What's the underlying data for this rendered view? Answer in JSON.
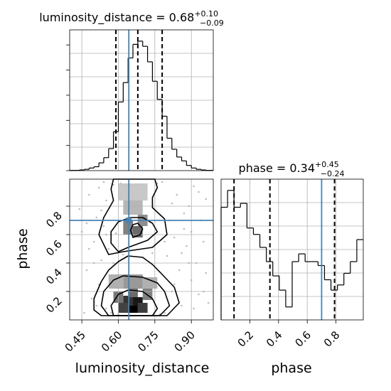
{
  "chart_data": [
    {
      "type": "histogram",
      "panel": "luminosity_distance-marginal",
      "title": {
        "text": "luminosity_distance = 0.68",
        "sup": "+0.10",
        "sub": "−0.09"
      },
      "xlim": [
        0.4,
        0.99
      ],
      "bin_edges": [
        0.4,
        0.42,
        0.44,
        0.46,
        0.48,
        0.5,
        0.52,
        0.54,
        0.56,
        0.58,
        0.6,
        0.62,
        0.64,
        0.66,
        0.68,
        0.7,
        0.72,
        0.74,
        0.76,
        0.78,
        0.8,
        0.82,
        0.84,
        0.86,
        0.88,
        0.9,
        0.92,
        0.94,
        0.96,
        0.99
      ],
      "counts": [
        0.002,
        0.002,
        0.005,
        0.01,
        0.02,
        0.03,
        0.06,
        0.1,
        0.17,
        0.3,
        0.53,
        0.68,
        0.87,
        0.975,
        1.0,
        0.96,
        0.84,
        0.69,
        0.55,
        0.42,
        0.25,
        0.165,
        0.105,
        0.075,
        0.04,
        0.02,
        0.01,
        0.005,
        0.002
      ],
      "quantiles": [
        0.59,
        0.68,
        0.78
      ],
      "truth": 0.643,
      "grid": true
    },
    {
      "type": "histogram",
      "panel": "phase-marginal",
      "title": {
        "text": "phase = 0.34",
        "sup": "+0.45",
        "sub": "−0.24"
      },
      "xlim": [
        0.0,
        0.99
      ],
      "bin_edges": [
        0.0,
        0.045,
        0.09,
        0.135,
        0.18,
        0.225,
        0.27,
        0.315,
        0.36,
        0.405,
        0.45,
        0.495,
        0.54,
        0.585,
        0.63,
        0.675,
        0.72,
        0.765,
        0.81,
        0.855,
        0.9,
        0.945,
        0.99
      ],
      "counts": [
        0.87,
        1.0,
        0.87,
        0.9,
        0.71,
        0.66,
        0.56,
        0.45,
        0.34,
        0.23,
        0.1,
        0.45,
        0.51,
        0.45,
        0.45,
        0.42,
        0.31,
        0.23,
        0.27,
        0.36,
        0.45,
        0.62
      ],
      "quantiles": [
        0.09,
        0.34,
        0.79
      ],
      "truth": 0.7,
      "xticks": [
        "0.2",
        "0.4",
        "0.6",
        "0.8"
      ],
      "xlabel": "phase",
      "grid": true
    },
    {
      "type": "heatmap",
      "panel": "2d-density",
      "xlabel": "luminosity_distance",
      "ylabel": "phase",
      "xlim": [
        0.4,
        0.99
      ],
      "ylim": [
        0.0,
        0.99
      ],
      "xticks": [
        "0.45",
        "0.60",
        "0.75",
        "0.90"
      ],
      "yticks": [
        "0.2",
        "0.4",
        "0.6",
        "0.8"
      ],
      "truth": [
        0.643,
        0.7
      ],
      "density_bins": [
        {
          "x": [
            0.64,
            0.68
          ],
          "y": [
            0.05,
            0.1
          ],
          "level": 1.0
        },
        {
          "x": [
            0.66,
            0.7
          ],
          "y": [
            0.1,
            0.16
          ],
          "level": 0.9
        },
        {
          "x": [
            0.62,
            0.66
          ],
          "y": [
            0.1,
            0.17
          ],
          "level": 0.78
        },
        {
          "x": [
            0.6,
            0.64
          ],
          "y": [
            0.05,
            0.12
          ],
          "level": 0.72
        },
        {
          "x": [
            0.68,
            0.72
          ],
          "y": [
            0.05,
            0.12
          ],
          "level": 0.74
        },
        {
          "x": [
            0.64,
            0.68
          ],
          "y": [
            0.16,
            0.22
          ],
          "level": 0.55
        },
        {
          "x": [
            0.58,
            0.62
          ],
          "y": [
            0.12,
            0.2
          ],
          "level": 0.5
        },
        {
          "x": [
            0.7,
            0.74
          ],
          "y": [
            0.14,
            0.22
          ],
          "level": 0.45
        },
        {
          "x": [
            0.62,
            0.7
          ],
          "y": [
            0.22,
            0.32
          ],
          "level": 0.35
        },
        {
          "x": [
            0.56,
            0.62
          ],
          "y": [
            0.22,
            0.32
          ],
          "level": 0.25
        },
        {
          "x": [
            0.7,
            0.76
          ],
          "y": [
            0.22,
            0.3
          ],
          "level": 0.25
        },
        {
          "x": [
            0.66,
            0.7
          ],
          "y": [
            0.58,
            0.66
          ],
          "level": 0.55
        },
        {
          "x": [
            0.62,
            0.66
          ],
          "y": [
            0.6,
            0.7
          ],
          "level": 0.45
        },
        {
          "x": [
            0.68,
            0.72
          ],
          "y": [
            0.66,
            0.74
          ],
          "level": 0.4
        },
        {
          "x": [
            0.62,
            0.7
          ],
          "y": [
            0.74,
            0.84
          ],
          "level": 0.22
        },
        {
          "x": [
            0.6,
            0.72
          ],
          "y": [
            0.84,
            0.96
          ],
          "level": 0.15
        }
      ],
      "contours": [
        [
          [
            0.58,
            0.03
          ],
          [
            0.74,
            0.03
          ],
          [
            0.76,
            0.08
          ],
          [
            0.74,
            0.15
          ],
          [
            0.7,
            0.2
          ],
          [
            0.64,
            0.21
          ],
          [
            0.6,
            0.18
          ],
          [
            0.57,
            0.1
          ]
        ],
        [
          [
            0.56,
            0.03
          ],
          [
            0.77,
            0.03
          ],
          [
            0.81,
            0.1
          ],
          [
            0.79,
            0.2
          ],
          [
            0.76,
            0.26
          ],
          [
            0.7,
            0.3
          ],
          [
            0.62,
            0.31
          ],
          [
            0.58,
            0.28
          ],
          [
            0.54,
            0.2
          ],
          [
            0.53,
            0.1
          ]
        ],
        [
          [
            0.53,
            0.03
          ],
          [
            0.8,
            0.03
          ],
          [
            0.85,
            0.12
          ],
          [
            0.83,
            0.23
          ],
          [
            0.78,
            0.32
          ],
          [
            0.74,
            0.39
          ],
          [
            0.7,
            0.44
          ],
          [
            0.64,
            0.45
          ],
          [
            0.6,
            0.41
          ],
          [
            0.56,
            0.35
          ],
          [
            0.53,
            0.27
          ],
          [
            0.5,
            0.15
          ],
          [
            0.5,
            0.07
          ]
        ],
        [
          [
            0.6,
            0.48
          ],
          [
            0.64,
            0.51
          ],
          [
            0.72,
            0.56
          ],
          [
            0.76,
            0.62
          ],
          [
            0.74,
            0.68
          ],
          [
            0.7,
            0.72
          ],
          [
            0.65,
            0.72
          ],
          [
            0.6,
            0.69
          ],
          [
            0.57,
            0.62
          ],
          [
            0.57,
            0.54
          ]
        ],
        [
          [
            0.66,
            0.58
          ],
          [
            0.69,
            0.6
          ],
          [
            0.7,
            0.64
          ],
          [
            0.68,
            0.68
          ],
          [
            0.66,
            0.67
          ],
          [
            0.65,
            0.63
          ]
        ],
        [
          [
            0.56,
            0.46
          ],
          [
            0.62,
            0.48
          ],
          [
            0.74,
            0.51
          ],
          [
            0.8,
            0.6
          ],
          [
            0.79,
            0.71
          ],
          [
            0.74,
            0.79
          ],
          [
            0.74,
            0.86
          ],
          [
            0.76,
            0.93
          ],
          [
            0.75,
            0.99
          ],
          [
            0.58,
            0.99
          ],
          [
            0.57,
            0.92
          ],
          [
            0.58,
            0.84
          ],
          [
            0.54,
            0.72
          ],
          [
            0.52,
            0.6
          ]
        ]
      ],
      "scatter_points": [
        [
          0.45,
          0.62
        ],
        [
          0.47,
          0.35
        ],
        [
          0.48,
          0.88
        ],
        [
          0.49,
          0.15
        ],
        [
          0.5,
          0.55
        ],
        [
          0.51,
          0.72
        ],
        [
          0.52,
          0.25
        ],
        [
          0.52,
          0.93
        ],
        [
          0.53,
          0.42
        ],
        [
          0.54,
          0.66
        ],
        [
          0.55,
          0.08
        ],
        [
          0.55,
          0.84
        ],
        [
          0.56,
          0.5
        ],
        [
          0.57,
          0.3
        ],
        [
          0.58,
          0.95
        ],
        [
          0.59,
          0.61
        ],
        [
          0.8,
          0.45
        ],
        [
          0.81,
          0.7
        ],
        [
          0.82,
          0.2
        ],
        [
          0.83,
          0.58
        ],
        [
          0.84,
          0.88
        ],
        [
          0.85,
          0.35
        ],
        [
          0.86,
          0.1
        ],
        [
          0.87,
          0.64
        ],
        [
          0.88,
          0.52
        ],
        [
          0.89,
          0.8
        ],
        [
          0.9,
          0.28
        ],
        [
          0.91,
          0.94
        ],
        [
          0.92,
          0.4
        ],
        [
          0.93,
          0.18
        ],
        [
          0.94,
          0.7
        ],
        [
          0.95,
          0.55
        ],
        [
          0.96,
          0.85
        ],
        [
          0.97,
          0.12
        ],
        [
          0.46,
          0.05
        ],
        [
          0.5,
          0.4
        ],
        [
          0.53,
          0.77
        ],
        [
          0.57,
          0.05
        ],
        [
          0.78,
          0.97
        ],
        [
          0.79,
          0.05
        ],
        [
          0.82,
          0.82
        ],
        [
          0.86,
          0.47
        ],
        [
          0.9,
          0.62
        ],
        [
          0.93,
          0.9
        ],
        [
          0.96,
          0.33
        ],
        [
          0.48,
          0.5
        ],
        [
          0.51,
          0.1
        ],
        [
          0.54,
          0.97
        ],
        [
          0.58,
          0.4
        ],
        [
          0.83,
          0.25
        ],
        [
          0.87,
          0.75
        ],
        [
          0.91,
          0.08
        ],
        [
          0.44,
          0.78
        ],
        [
          0.95,
          0.2
        ],
        [
          0.6,
          0.04
        ],
        [
          0.77,
          0.04
        ],
        [
          0.61,
          0.96
        ],
        [
          0.76,
          0.96
        ],
        [
          0.47,
          0.68
        ],
        [
          0.89,
          0.4
        ],
        [
          0.62,
          0.46
        ],
        [
          0.74,
          0.47
        ],
        [
          0.79,
          0.55
        ],
        [
          0.55,
          0.6
        ]
      ],
      "grid": true
    }
  ],
  "colors": {
    "truth_line": "#4682b4",
    "hist_line": "#000000",
    "grid": "#b0b0b0",
    "scatter": "#bdbdbd"
  }
}
